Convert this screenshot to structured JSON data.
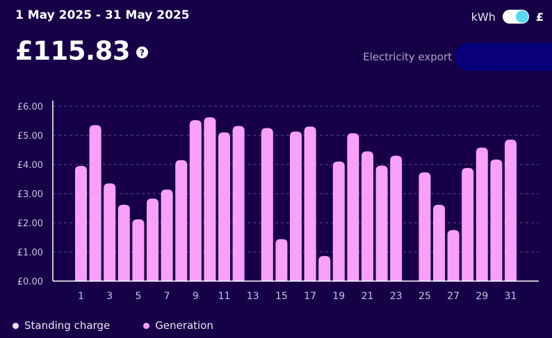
{
  "header": {
    "date_range": "1 May 2025 - 31 May 2025",
    "total": "£115.83",
    "help_icon": "?",
    "unit_kwh": "kWh",
    "unit_gbp": "£",
    "toggle_state": "£",
    "export_label": "Electricity export"
  },
  "colors": {
    "background": "#180048",
    "bar": "#f9a0fa",
    "grid": "#5c4c8a",
    "axis": "#ffffff",
    "tick_text": "#c7c1e0",
    "toggle_knob": "#5ad8f2",
    "standing_charge": "#f7dcf7",
    "generation": "#f9a0fa"
  },
  "legend": [
    {
      "label": "Standing charge",
      "color": "#f7dcf7"
    },
    {
      "label": "Generation",
      "color": "#f9a0fa"
    }
  ],
  "chart_data": {
    "type": "bar",
    "title": "",
    "xlabel": "",
    "ylabel": "",
    "ylim": [
      0,
      6
    ],
    "y_ticks": [
      {
        "value": 0,
        "label": "£0.00"
      },
      {
        "value": 1,
        "label": "£1.00"
      },
      {
        "value": 2,
        "label": "£2.00"
      },
      {
        "value": 3,
        "label": "£3.00"
      },
      {
        "value": 4,
        "label": "£4.00"
      },
      {
        "value": 5,
        "label": "£5.00"
      },
      {
        "value": 6,
        "label": "£6.00"
      }
    ],
    "grid": true,
    "legend_position": "bottom-left",
    "categories": [
      1,
      2,
      3,
      4,
      5,
      6,
      7,
      8,
      9,
      10,
      11,
      12,
      13,
      14,
      15,
      16,
      17,
      18,
      19,
      20,
      21,
      22,
      23,
      24,
      25,
      26,
      27,
      28,
      29,
      30,
      31
    ],
    "x_tick_labels": [
      "1",
      "3",
      "5",
      "7",
      "9",
      "11",
      "13",
      "15",
      "17",
      "19",
      "21",
      "23",
      "25",
      "27",
      "29",
      "31"
    ],
    "series": [
      {
        "name": "Generation",
        "values": [
          3.95,
          5.35,
          3.35,
          2.62,
          2.12,
          2.83,
          3.14,
          4.15,
          5.52,
          5.62,
          5.1,
          5.32,
          0,
          5.25,
          1.44,
          5.13,
          5.3,
          0.86,
          4.1,
          5.07,
          4.45,
          3.96,
          4.3,
          0,
          3.73,
          2.62,
          1.75,
          3.88,
          4.58,
          4.17,
          4.85
        ]
      }
    ]
  }
}
